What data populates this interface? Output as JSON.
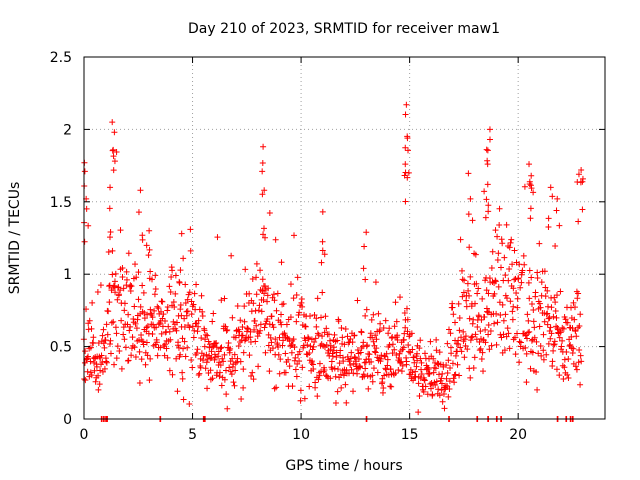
{
  "chart_data": {
    "type": "scatter",
    "title": "Day 210 of 2023, SRMTID for receiver maw1",
    "xlabel": "GPS time / hours",
    "ylabel": "SRMTID / TECUs",
    "xlim": [
      0,
      24
    ],
    "ylim": [
      0,
      2.5
    ],
    "xticks": [
      "0",
      "5",
      "10",
      "15",
      "20"
    ],
    "yticks": [
      "0",
      "0.5",
      "1",
      "1.5",
      "2",
      "2.5"
    ],
    "grid": true,
    "marker": "+",
    "color": "#ff0000",
    "series": [
      {
        "name": "maw1",
        "profile": {
          "x_hours": [
            0.0,
            0.3,
            0.7,
            1.0,
            1.3,
            1.6,
            2.0,
            2.5,
            3.0,
            3.5,
            4.0,
            4.5,
            5.0,
            5.5,
            6.0,
            6.5,
            7.0,
            7.5,
            8.0,
            8.3,
            8.6,
            9.0,
            9.5,
            10.0,
            10.5,
            10.9,
            11.5,
            12.0,
            12.5,
            13.0,
            13.5,
            14.0,
            14.5,
            14.8,
            15.2,
            15.6,
            16.0,
            16.4,
            16.8,
            17.2,
            17.6,
            18.0,
            18.4,
            18.8,
            19.2,
            19.6,
            20.0,
            20.4,
            20.8,
            21.2,
            21.6,
            22.0,
            22.5,
            22.9
          ],
          "median_y": [
            0.5,
            0.42,
            0.35,
            0.5,
            0.82,
            0.88,
            0.75,
            0.6,
            0.68,
            0.6,
            0.66,
            0.62,
            0.6,
            0.5,
            0.46,
            0.42,
            0.45,
            0.55,
            0.68,
            0.78,
            0.6,
            0.55,
            0.54,
            0.52,
            0.5,
            0.55,
            0.45,
            0.4,
            0.4,
            0.42,
            0.47,
            0.42,
            0.46,
            0.55,
            0.37,
            0.32,
            0.3,
            0.3,
            0.4,
            0.62,
            0.72,
            0.68,
            0.55,
            0.78,
            0.92,
            0.88,
            0.78,
            0.72,
            0.68,
            0.75,
            0.62,
            0.55,
            0.55,
            0.6
          ],
          "peaks": [
            [
              0.02,
              1.77
            ],
            [
              0.1,
              1.52
            ],
            [
              1.3,
              2.05
            ],
            [
              1.4,
              1.98
            ],
            [
              1.2,
              1.6
            ],
            [
              2.6,
              1.58
            ],
            [
              3.0,
              1.3
            ],
            [
              4.5,
              1.28
            ],
            [
              8.25,
              1.88
            ],
            [
              8.3,
              1.58
            ],
            [
              11.0,
              1.43
            ],
            [
              13.0,
              1.29
            ],
            [
              14.85,
              2.17
            ],
            [
              14.9,
              1.94
            ],
            [
              14.8,
              1.76
            ],
            [
              17.8,
              1.52
            ],
            [
              18.55,
              1.86
            ],
            [
              18.6,
              1.62
            ],
            [
              18.7,
              2.0
            ],
            [
              20.5,
              1.76
            ],
            [
              20.6,
              1.68
            ],
            [
              21.5,
              1.6
            ],
            [
              21.8,
              1.52
            ],
            [
              22.9,
              1.72
            ],
            [
              22.8,
              1.69
            ]
          ],
          "zero_values_at_hours": [
            0.8,
            0.9,
            1.0,
            1.05,
            3.5,
            5.5,
            5.55,
            13.0,
            16.8,
            18.1,
            18.6,
            19.0,
            19.2,
            21.8,
            22.2,
            22.4,
            22.5
          ]
        }
      }
    ]
  }
}
